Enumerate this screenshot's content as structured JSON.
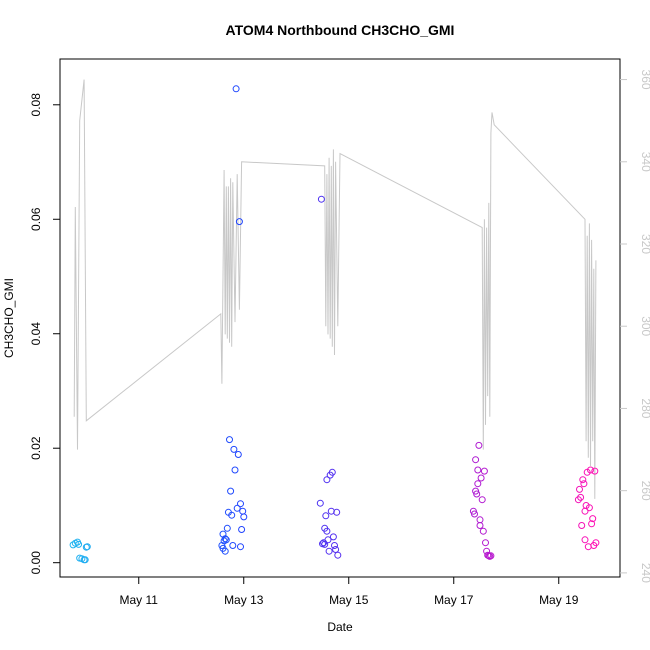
{
  "chart_data": {
    "type": "scatter",
    "title": "ATOM4 Northbound CH3CHO_GMI",
    "xlabel": "Date",
    "ylabel": "CH3CHO_GMI",
    "xlim": [
      "2017-05-09T12:00",
      "2017-05-20T04:00"
    ],
    "ylim": [
      -0.0025,
      0.088
    ],
    "y2lim": [
      239,
      365
    ],
    "x_ticks": [
      {
        "date": "2017-05-11",
        "label": "May 11"
      },
      {
        "date": "2017-05-13",
        "label": "May 13"
      },
      {
        "date": "2017-05-15",
        "label": "May 15"
      },
      {
        "date": "2017-05-17",
        "label": "May 17"
      },
      {
        "date": "2017-05-19",
        "label": "May 19"
      }
    ],
    "y_ticks": [
      "0.00",
      "0.02",
      "0.04",
      "0.06",
      "0.08"
    ],
    "y2_ticks": [
      "240",
      "260",
      "280",
      "300",
      "320",
      "340",
      "360"
    ],
    "points_color_gradient": [
      "#1eb4f0",
      "#2040ff",
      "#8a20e0",
      "#ff10b4"
    ],
    "secondary_line_color": "#c8c8c8",
    "series": [
      {
        "style": "points",
        "points": [
          [
            "2017-05-09T18:00",
            0.0031
          ],
          [
            "2017-05-09T19:00",
            0.0034
          ],
          [
            "2017-05-09T20:00",
            0.0036
          ],
          [
            "2017-05-09T20:30",
            0.0032
          ],
          [
            "2017-05-09T21:00",
            0.0008
          ],
          [
            "2017-05-09T22:00",
            0.0007
          ],
          [
            "2017-05-09T23:00",
            0.0005
          ],
          [
            "2017-05-09T23:30",
            0.0005
          ],
          [
            "2017-05-10T00:00",
            0.0027
          ],
          [
            "2017-05-10T00:30",
            0.0028
          ],
          [
            "2017-05-12T14:00",
            0.003
          ],
          [
            "2017-05-12T14:30",
            0.005
          ],
          [
            "2017-05-12T15:00",
            0.0038
          ],
          [
            "2017-05-12T15:30",
            0.002
          ],
          [
            "2017-05-12T16:00",
            0.004
          ],
          [
            "2017-05-12T16:30",
            0.006
          ],
          [
            "2017-05-12T17:00",
            0.0088
          ],
          [
            "2017-05-12T17:30",
            0.0215
          ],
          [
            "2017-05-12T18:00",
            0.0125
          ],
          [
            "2017-05-12T18:30",
            0.0083
          ],
          [
            "2017-05-12T19:00",
            0.003
          ],
          [
            "2017-05-12T19:30",
            0.0198
          ],
          [
            "2017-05-12T20:00",
            0.0162
          ],
          [
            "2017-05-12T20:30",
            0.0828
          ],
          [
            "2017-05-12T21:00",
            0.0095
          ],
          [
            "2017-05-12T21:30",
            0.0189
          ],
          [
            "2017-05-12T22:00",
            0.0596
          ],
          [
            "2017-05-12T22:30",
            0.0103
          ],
          [
            "2017-05-12T23:00",
            0.0058
          ],
          [
            "2017-05-12T23:30",
            0.009
          ],
          [
            "2017-05-13T00:00",
            0.008
          ],
          [
            "2017-05-12T22:30",
            0.0028
          ],
          [
            "2017-05-12T14:30",
            0.0025
          ],
          [
            "2017-05-12T15:30",
            0.0042
          ],
          [
            "2017-05-14T11:00",
            0.0104
          ],
          [
            "2017-05-14T11:30",
            0.0635
          ],
          [
            "2017-05-14T12:00",
            0.0033
          ],
          [
            "2017-05-14T12:30",
            0.0035
          ],
          [
            "2017-05-14T13:00",
            0.006
          ],
          [
            "2017-05-14T13:30",
            0.0082
          ],
          [
            "2017-05-14T14:00",
            0.0145
          ],
          [
            "2017-05-14T14:30",
            0.004
          ],
          [
            "2017-05-14T15:00",
            0.002
          ],
          [
            "2017-05-14T15:30",
            0.0153
          ],
          [
            "2017-05-14T16:00",
            0.009
          ],
          [
            "2017-05-14T16:30",
            0.0158
          ],
          [
            "2017-05-14T17:00",
            0.0045
          ],
          [
            "2017-05-14T17:30",
            0.003
          ],
          [
            "2017-05-14T18:00",
            0.0023
          ],
          [
            "2017-05-14T18:30",
            0.0088
          ],
          [
            "2017-05-14T19:00",
            0.0013
          ],
          [
            "2017-05-14T14:00",
            0.0055
          ],
          [
            "2017-05-14T13:00",
            0.0032
          ],
          [
            "2017-05-17T09:00",
            0.009
          ],
          [
            "2017-05-17T09:30",
            0.0085
          ],
          [
            "2017-05-17T10:00",
            0.018
          ],
          [
            "2017-05-17T10:30",
            0.012
          ],
          [
            "2017-05-17T11:00",
            0.0162
          ],
          [
            "2017-05-17T11:30",
            0.0205
          ],
          [
            "2017-05-17T12:00",
            0.0075
          ],
          [
            "2017-05-17T12:30",
            0.0148
          ],
          [
            "2017-05-17T13:00",
            0.011
          ],
          [
            "2017-05-17T13:30",
            0.0055
          ],
          [
            "2017-05-17T14:00",
            0.016
          ],
          [
            "2017-05-17T14:30",
            0.0035
          ],
          [
            "2017-05-17T15:00",
            0.002
          ],
          [
            "2017-05-17T15:30",
            0.0013
          ],
          [
            "2017-05-17T16:00",
            0.0012
          ],
          [
            "2017-05-17T16:30",
            0.0011
          ],
          [
            "2017-05-17T17:00",
            0.0012
          ],
          [
            "2017-05-17T10:00",
            0.0125
          ],
          [
            "2017-05-17T11:00",
            0.0138
          ],
          [
            "2017-05-17T12:00",
            0.0065
          ],
          [
            "2017-05-19T09:00",
            0.011
          ],
          [
            "2017-05-19T09:30",
            0.0128
          ],
          [
            "2017-05-19T10:00",
            0.0114
          ],
          [
            "2017-05-19T10:30",
            0.0065
          ],
          [
            "2017-05-19T11:00",
            0.0145
          ],
          [
            "2017-05-19T11:30",
            0.0138
          ],
          [
            "2017-05-19T12:00",
            0.004
          ],
          [
            "2017-05-19T12:30",
            0.01
          ],
          [
            "2017-05-19T13:00",
            0.0158
          ],
          [
            "2017-05-19T13:30",
            0.0028
          ],
          [
            "2017-05-19T14:00",
            0.0096
          ],
          [
            "2017-05-19T14:30",
            0.0162
          ],
          [
            "2017-05-19T15:00",
            0.0068
          ],
          [
            "2017-05-19T15:30",
            0.0077
          ],
          [
            "2017-05-19T16:00",
            0.003
          ],
          [
            "2017-05-19T16:30",
            0.016
          ],
          [
            "2017-05-19T17:00",
            0.0035
          ],
          [
            "2017-05-19T12:00",
            0.009
          ]
        ]
      },
      {
        "style": "line",
        "axis": "right",
        "points": [
          [
            "2017-05-09T18:30",
            278
          ],
          [
            "2017-05-09T19:00",
            329
          ],
          [
            "2017-05-09T20:00",
            270
          ],
          [
            "2017-05-09T21:00",
            350
          ],
          [
            "2017-05-09T23:00",
            360
          ],
          [
            "2017-05-10T00:00",
            277
          ],
          [
            "2017-05-12T13:30",
            303
          ],
          [
            "2017-05-12T14:00",
            286
          ],
          [
            "2017-05-12T15:00",
            338
          ],
          [
            "2017-05-12T15:30",
            298
          ],
          [
            "2017-05-12T16:00",
            334
          ],
          [
            "2017-05-12T16:30",
            297
          ],
          [
            "2017-05-12T17:00",
            334
          ],
          [
            "2017-05-12T17:30",
            296
          ],
          [
            "2017-05-12T18:00",
            336
          ],
          [
            "2017-05-12T18:30",
            295
          ],
          [
            "2017-05-12T19:00",
            335
          ],
          [
            "2017-05-12T20:00",
            301
          ],
          [
            "2017-05-12T21:00",
            337
          ],
          [
            "2017-05-12T22:00",
            304
          ],
          [
            "2017-05-12T23:00",
            340
          ],
          [
            "2017-05-14T13:00",
            339
          ],
          [
            "2017-05-14T13:30",
            300
          ],
          [
            "2017-05-14T14:00",
            337
          ],
          [
            "2017-05-14T14:30",
            298
          ],
          [
            "2017-05-14T15:00",
            341
          ],
          [
            "2017-05-14T15:30",
            297
          ],
          [
            "2017-05-14T16:00",
            339
          ],
          [
            "2017-05-14T16:30",
            295
          ],
          [
            "2017-05-14T17:00",
            343
          ],
          [
            "2017-05-14T17:30",
            293
          ],
          [
            "2017-05-14T18:00",
            340
          ],
          [
            "2017-05-14T19:00",
            300
          ],
          [
            "2017-05-14T20:00",
            342
          ],
          [
            "2017-05-17T13:00",
            324
          ],
          [
            "2017-05-17T13:30",
            270
          ],
          [
            "2017-05-17T14:00",
            326
          ],
          [
            "2017-05-17T14:30",
            276
          ],
          [
            "2017-05-17T15:00",
            324
          ],
          [
            "2017-05-17T15:30",
            283
          ],
          [
            "2017-05-17T16:00",
            330
          ],
          [
            "2017-05-17T16:30",
            278
          ],
          [
            "2017-05-17T17:00",
            347
          ],
          [
            "2017-05-17T17:30",
            352
          ],
          [
            "2017-05-17T18:30",
            349
          ],
          [
            "2017-05-19T12:00",
            326
          ],
          [
            "2017-05-19T12:30",
            272
          ],
          [
            "2017-05-19T13:00",
            322
          ],
          [
            "2017-05-19T13:30",
            268
          ],
          [
            "2017-05-19T14:00",
            325
          ],
          [
            "2017-05-19T14:30",
            266
          ],
          [
            "2017-05-19T15:00",
            321
          ],
          [
            "2017-05-19T15:30",
            272
          ],
          [
            "2017-05-19T16:00",
            314
          ],
          [
            "2017-05-19T16:30",
            258
          ],
          [
            "2017-05-19T17:00",
            316
          ]
        ]
      }
    ]
  }
}
